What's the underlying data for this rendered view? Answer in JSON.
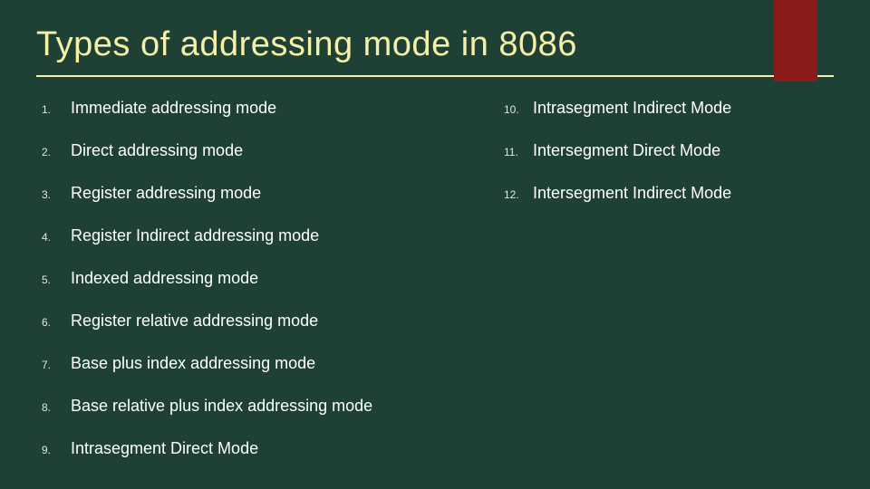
{
  "colors": {
    "background": "#1e4035",
    "title": "#f4f0a8",
    "text": "#ffffff",
    "number": "#e8e4d8",
    "divider": "#f4f0a8",
    "accent": "#8c1b1b"
  },
  "title": "Types of addressing mode in 8086",
  "left_items": [
    {
      "num": "1.",
      "text": "Immediate addressing mode"
    },
    {
      "num": "2.",
      "text": "Direct addressing mode"
    },
    {
      "num": "3.",
      "text": "Register addressing mode"
    },
    {
      "num": "4.",
      "text": "Register Indirect addressing mode"
    },
    {
      "num": "5.",
      "text": "Indexed addressing mode"
    },
    {
      "num": "6.",
      "text": "Register relative addressing mode"
    },
    {
      "num": "7.",
      "text": "Base plus index addressing mode"
    },
    {
      "num": "8.",
      "text": "Base relative plus index addressing mode"
    },
    {
      "num": "9.",
      "text": "Intrasegment Direct Mode"
    }
  ],
  "right_items": [
    {
      "num": "10.",
      "text": "Intrasegment Indirect Mode"
    },
    {
      "num": "11.",
      "text": "Intersegment Direct Mode"
    },
    {
      "num": "12.",
      "text": "Intersegment Indirect Mode"
    }
  ],
  "typography": {
    "title_fontsize": 38,
    "item_fontsize": 18,
    "number_fontsize": 12
  }
}
